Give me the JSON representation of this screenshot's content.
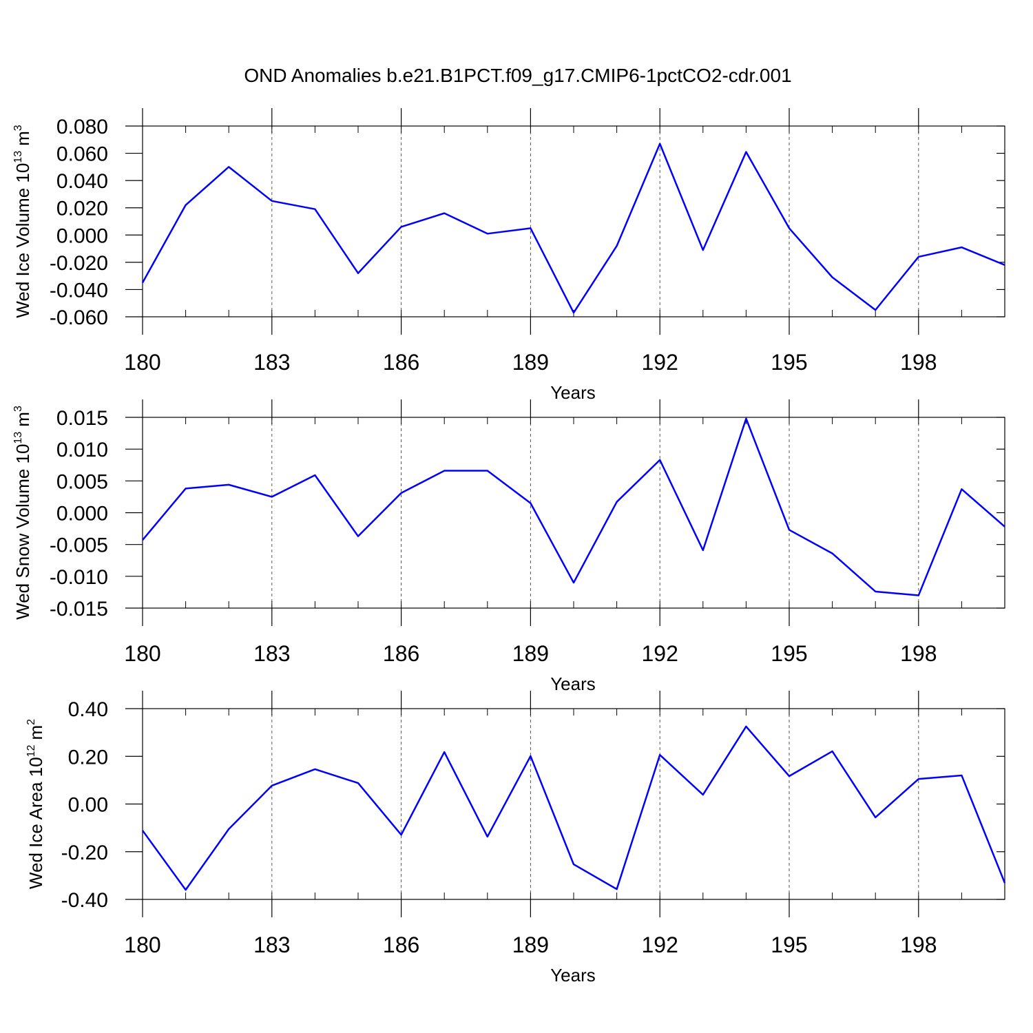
{
  "title": "OND Anomalies b.e21.B1PCT.f09_g17.CMIP6-1pctCO2-cdr.001",
  "chart_data": [
    {
      "type": "line",
      "xlabel": "Years",
      "ylabel": [
        "Wed Ice Volume 10",
        "13",
        "m",
        "3"
      ],
      "x": [
        180,
        181,
        182,
        183,
        184,
        185,
        186,
        187,
        188,
        189,
        190,
        191,
        192,
        193,
        194,
        195,
        196,
        197,
        198,
        199,
        200
      ],
      "color": "#0000ff",
      "values": [
        -0.035,
        0.022,
        0.05,
        0.025,
        0.019,
        -0.028,
        0.006,
        0.016,
        0.001,
        0.005,
        -0.057,
        -0.008,
        0.067,
        -0.011,
        0.061,
        0.005,
        -0.031,
        -0.055,
        -0.016,
        -0.009,
        -0.022
      ],
      "xlim": [
        180,
        200
      ],
      "xticks": [
        180,
        183,
        186,
        189,
        192,
        195,
        198
      ],
      "ylim": [
        -0.06,
        0.08
      ],
      "yticks": [
        {
          "value": 0.08,
          "label": "0.080"
        },
        {
          "value": 0.06,
          "label": "0.060"
        },
        {
          "value": 0.04,
          "label": "0.040"
        },
        {
          "value": 0.02,
          "label": "0.020"
        },
        {
          "value": 0,
          "label": "0.000"
        },
        {
          "value": -0.02,
          "label": "-0.020"
        },
        {
          "value": -0.04,
          "label": "-0.040"
        },
        {
          "value": -0.06,
          "label": "-0.060"
        }
      ],
      "grid": true
    },
    {
      "type": "line",
      "xlabel": "Years",
      "ylabel": [
        "Wed Snow Volume 10",
        "13",
        "m",
        "3"
      ],
      "x": [
        180,
        181,
        182,
        183,
        184,
        185,
        186,
        187,
        188,
        189,
        190,
        191,
        192,
        193,
        194,
        195,
        196,
        197,
        198,
        199,
        200
      ],
      "color": "#0000ff",
      "values": [
        -0.0043,
        0.0038,
        0.0044,
        0.0025,
        0.0059,
        -0.0037,
        0.0031,
        0.0066,
        0.0066,
        0.0015,
        -0.011,
        0.0017,
        0.0083,
        -0.0059,
        0.0148,
        -0.0027,
        -0.0064,
        -0.0124,
        -0.013,
        0.0037,
        -0.0022
      ],
      "xlim": [
        180,
        200
      ],
      "xticks": [
        180,
        183,
        186,
        189,
        192,
        195,
        198
      ],
      "ylim": [
        -0.015,
        0.015
      ],
      "yticks": [
        {
          "value": 0.015,
          "label": "0.015"
        },
        {
          "value": 0.01,
          "label": "0.010"
        },
        {
          "value": 0.005,
          "label": "0.005"
        },
        {
          "value": 0,
          "label": "0.000"
        },
        {
          "value": -0.005,
          "label": "-0.005"
        },
        {
          "value": -0.01,
          "label": "-0.010"
        },
        {
          "value": -0.015,
          "label": "-0.015"
        }
      ],
      "grid": true
    },
    {
      "type": "line",
      "xlabel": "Years",
      "ylabel": [
        "Wed Ice Area 10",
        "12",
        "m",
        "2"
      ],
      "x": [
        180,
        181,
        182,
        183,
        184,
        185,
        186,
        187,
        188,
        189,
        190,
        191,
        192,
        193,
        194,
        195,
        196,
        197,
        198,
        199,
        200
      ],
      "color": "#0000ff",
      "values": [
        -0.111,
        -0.36,
        -0.105,
        0.077,
        0.146,
        0.088,
        -0.129,
        0.218,
        -0.137,
        0.201,
        -0.253,
        -0.357,
        0.206,
        0.039,
        0.325,
        0.117,
        0.221,
        -0.056,
        0.105,
        0.12,
        -0.331
      ],
      "xlim": [
        180,
        200
      ],
      "xticks": [
        180,
        183,
        186,
        189,
        192,
        195,
        198
      ],
      "ylim": [
        -0.4,
        0.4
      ],
      "yticks": [
        {
          "value": 0.4,
          "label": "0.40"
        },
        {
          "value": 0.2,
          "label": "0.20"
        },
        {
          "value": 0,
          "label": "0.00"
        },
        {
          "value": -0.2,
          "label": "-0.20"
        },
        {
          "value": -0.4,
          "label": "-0.40"
        }
      ],
      "grid": true
    }
  ]
}
